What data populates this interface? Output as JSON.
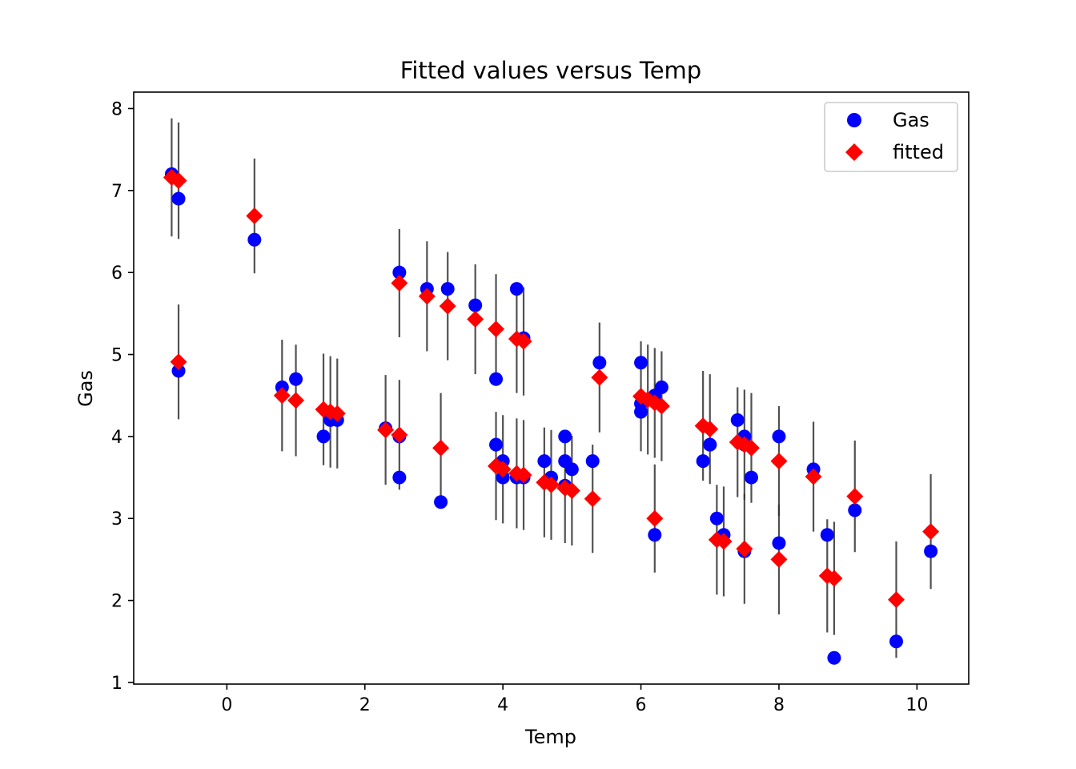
{
  "chart_data": {
    "type": "scatter",
    "title": "Fitted values versus Temp",
    "xlabel": "Temp",
    "ylabel": "Gas",
    "xlim": [
      -1.35,
      10.75
    ],
    "ylim": [
      0.98,
      8.2
    ],
    "xticks": [
      0,
      2,
      4,
      6,
      8,
      10
    ],
    "yticks": [
      1,
      2,
      3,
      4,
      5,
      6,
      7,
      8
    ],
    "legend_position": "upper right",
    "grid": false,
    "colors": {
      "gas": "#0000ff",
      "fitted": "#ff0000",
      "errorbar": "#333333"
    },
    "series": [
      {
        "name": "Gas",
        "marker": "circle",
        "x": [
          -0.8,
          -0.7,
          0.4,
          2.5,
          2.9,
          3.2,
          3.6,
          3.9,
          4.2,
          4.3,
          5.4,
          6.0,
          6.0,
          6.2,
          6.3,
          6.9,
          7.0,
          7.4,
          7.5,
          7.5,
          7.6,
          8.0,
          7.0,
          -0.7,
          0.8,
          1.0,
          1.4,
          1.5,
          1.6,
          2.3,
          2.5,
          2.5,
          3.1,
          3.9,
          4.0,
          4.0,
          4.2,
          4.3,
          4.6,
          4.7,
          4.9,
          4.9,
          4.9,
          5.0,
          5.3,
          6.0,
          6.2,
          7.1,
          7.2,
          7.5,
          8.0,
          8.5,
          8.7,
          8.8,
          9.1,
          9.7,
          10.2
        ],
        "y": [
          7.2,
          6.9,
          6.4,
          6.0,
          5.8,
          5.8,
          5.6,
          4.7,
          5.8,
          5.2,
          4.9,
          4.9,
          4.3,
          4.5,
          4.6,
          3.7,
          3.9,
          4.2,
          4.0,
          3.9,
          3.5,
          4.0,
          3.9,
          4.8,
          4.6,
          4.7,
          4.0,
          4.2,
          4.2,
          4.1,
          4.0,
          3.5,
          3.2,
          3.9,
          3.7,
          3.5,
          3.5,
          3.5,
          3.7,
          3.5,
          4.0,
          3.7,
          3.4,
          3.6,
          3.7,
          4.4,
          2.8,
          3.0,
          2.8,
          2.6,
          2.7,
          3.6,
          2.8,
          1.3,
          3.1,
          1.5,
          2.6
        ]
      },
      {
        "name": "fitted",
        "marker": "diamond",
        "x": [
          -0.8,
          -0.7,
          0.4,
          2.5,
          2.9,
          3.2,
          3.6,
          3.9,
          4.2,
          4.3,
          5.4,
          6.0,
          6.1,
          6.2,
          6.3,
          6.9,
          7.0,
          7.4,
          7.5,
          7.6,
          8.0,
          -0.7,
          0.8,
          1.0,
          1.4,
          1.5,
          1.6,
          2.3,
          2.5,
          3.1,
          3.9,
          4.0,
          4.2,
          4.3,
          4.6,
          4.7,
          4.9,
          5.0,
          5.3,
          6.2,
          7.1,
          7.2,
          7.5,
          8.0,
          8.5,
          8.7,
          8.8,
          9.1,
          9.7,
          10.2
        ],
        "y": [
          7.16,
          7.12,
          6.69,
          5.87,
          5.71,
          5.59,
          5.43,
          5.31,
          5.19,
          5.16,
          4.72,
          4.49,
          4.45,
          4.41,
          4.37,
          4.13,
          4.09,
          3.93,
          3.9,
          3.86,
          3.7,
          4.91,
          4.5,
          4.44,
          4.33,
          4.3,
          4.28,
          4.08,
          4.02,
          3.86,
          3.64,
          3.6,
          3.55,
          3.53,
          3.44,
          3.41,
          3.37,
          3.34,
          3.24,
          3.0,
          2.74,
          2.72,
          2.63,
          2.5,
          3.51,
          2.3,
          2.27,
          3.27,
          2.01,
          2.84
        ],
        "yerr": [
          0.72,
          0.71,
          0.7,
          0.66,
          0.67,
          0.66,
          0.67,
          0.67,
          0.66,
          0.66,
          0.67,
          0.67,
          0.67,
          0.67,
          0.67,
          0.67,
          0.67,
          0.67,
          0.67,
          0.67,
          0.67,
          0.7,
          0.68,
          0.68,
          0.68,
          0.68,
          0.67,
          0.67,
          0.67,
          0.67,
          0.66,
          0.66,
          0.67,
          0.67,
          0.67,
          0.67,
          0.67,
          0.67,
          0.66,
          0.66,
          0.67,
          0.67,
          0.67,
          0.67,
          0.67,
          0.69,
          0.69,
          0.68,
          0.71,
          0.7
        ]
      }
    ]
  }
}
